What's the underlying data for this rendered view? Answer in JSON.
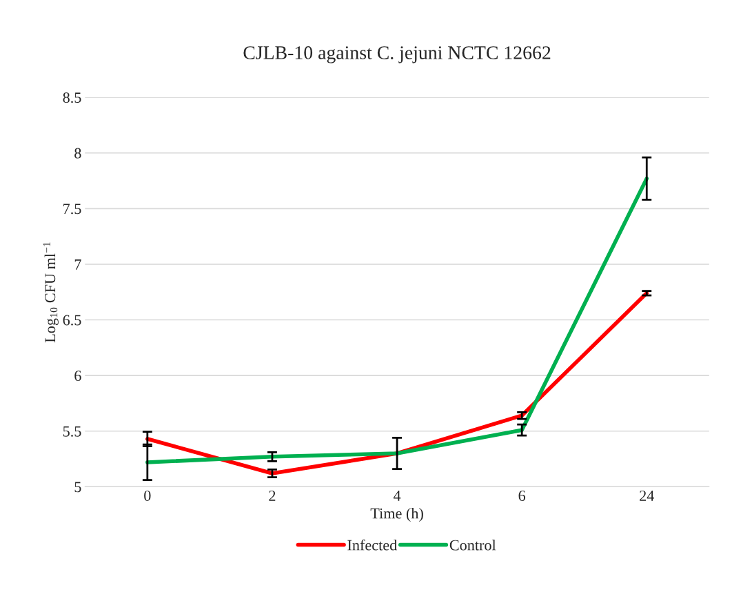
{
  "chart_data": {
    "type": "line",
    "title": "CJLB-10 against C. jejuni NCTC 12662",
    "xlabel": "Time (h)",
    "ylabel": "Log$_{10}$ CFU ml$^{−1}$",
    "categories": [
      "0",
      "2",
      "4",
      "6",
      "24"
    ],
    "series": [
      {
        "name": "Infected",
        "color": "#ff0000",
        "values": [
          5.43,
          5.12,
          5.3,
          5.64,
          6.74
        ],
        "errors": [
          0.065,
          0.035,
          null,
          0.03,
          0.02
        ]
      },
      {
        "name": "Control",
        "color": "#00b050",
        "values": [
          5.22,
          5.27,
          5.3,
          5.51,
          7.77
        ],
        "errors": [
          0.16,
          0.04,
          0.14,
          0.05,
          0.19
        ]
      }
    ],
    "ylim": [
      5,
      8.5
    ],
    "yticks": [
      5,
      5.5,
      6,
      6.5,
      7,
      7.5,
      8,
      8.5
    ],
    "grid": "y",
    "legend": "bottom",
    "marker": "none",
    "line_style": "solid"
  }
}
